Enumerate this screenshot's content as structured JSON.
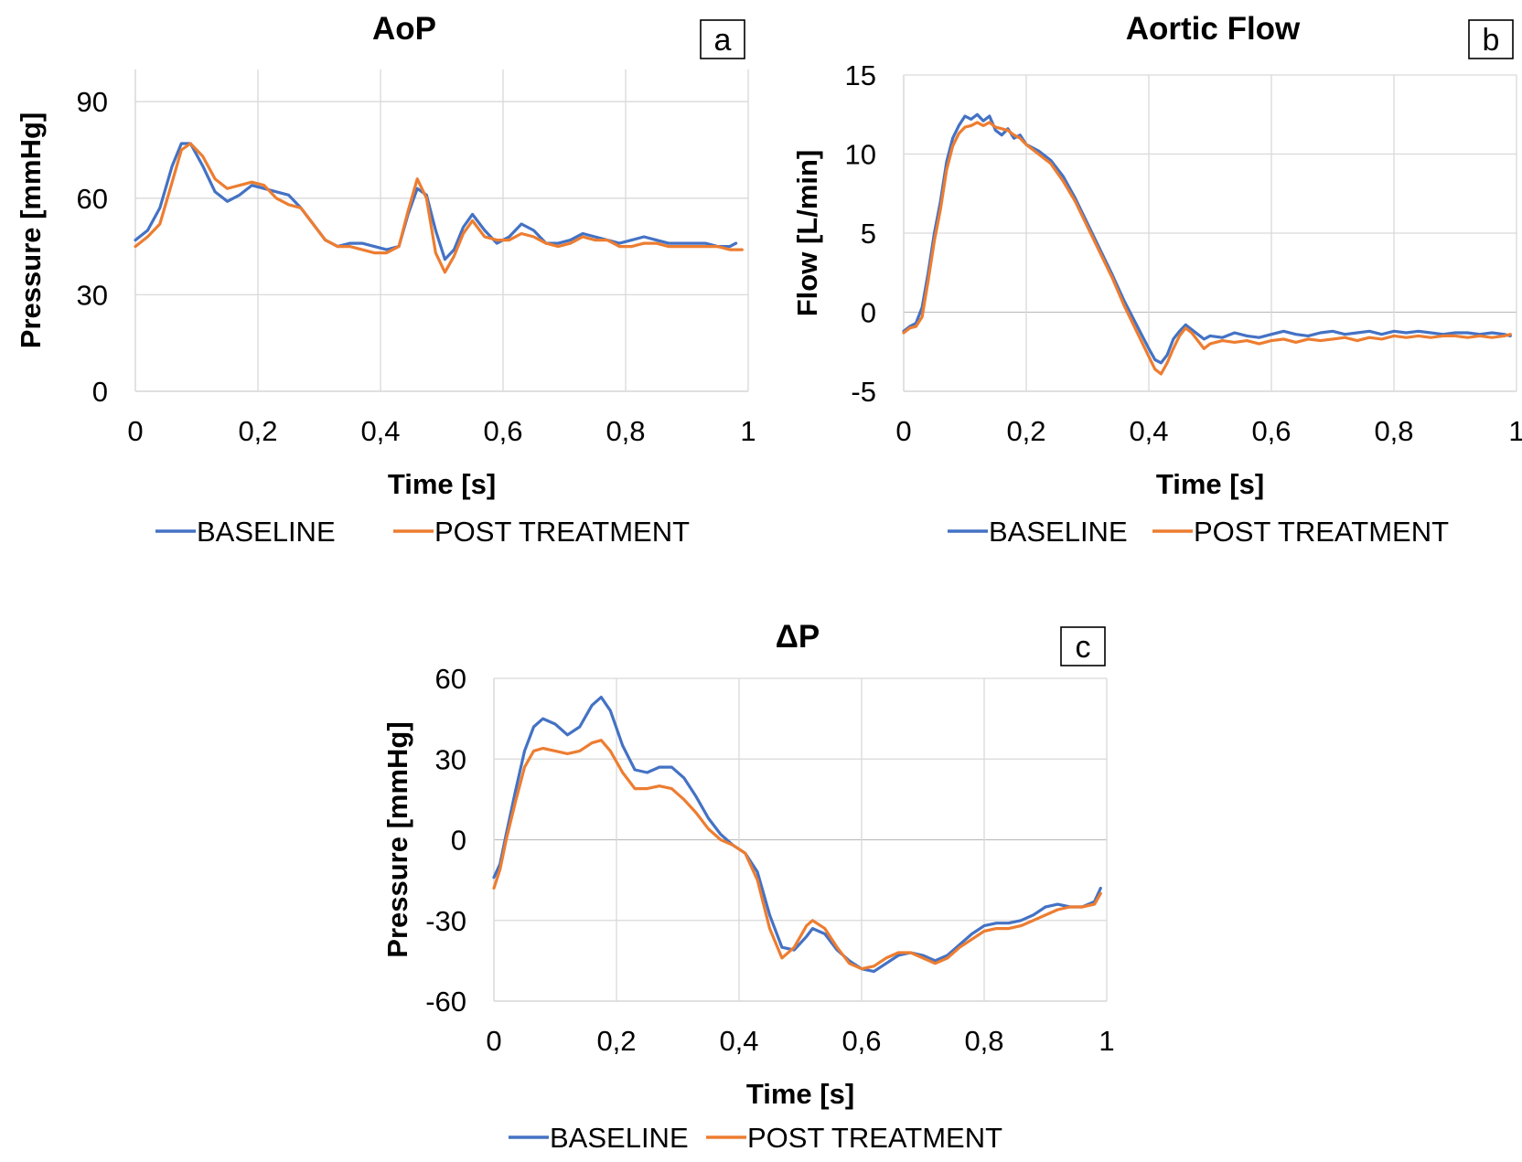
{
  "colors": {
    "baseline": "#4472C4",
    "post": "#ED7D31",
    "grid": "#D9D9D9",
    "text": "#000000",
    "zero": "#BFBFBF"
  },
  "chart_data": [
    {
      "type": "line",
      "panel_label": "a",
      "title": "AoP",
      "xlabel": "Time [s]",
      "ylabel": "Pressure [mmHg]",
      "xlim": [
        0,
        1
      ],
      "ylim": [
        0,
        100
      ],
      "xticks": [
        0,
        0.2,
        0.4,
        0.6,
        0.8,
        1
      ],
      "xtick_labels": [
        "0",
        "0,2",
        "0,4",
        "0,6",
        "0,8",
        "1"
      ],
      "yticks": [
        0,
        30,
        60,
        90
      ],
      "ytick_labels": [
        "0",
        "30",
        "60",
        "90"
      ],
      "grid": true,
      "legend": "bottom",
      "series": [
        {
          "name": "BASELINE",
          "color": "#4472C4",
          "x": [
            0,
            0.02,
            0.04,
            0.06,
            0.075,
            0.09,
            0.11,
            0.13,
            0.15,
            0.17,
            0.19,
            0.21,
            0.23,
            0.25,
            0.27,
            0.29,
            0.31,
            0.33,
            0.35,
            0.37,
            0.39,
            0.41,
            0.43,
            0.445,
            0.46,
            0.475,
            0.49,
            0.505,
            0.52,
            0.535,
            0.55,
            0.57,
            0.59,
            0.61,
            0.63,
            0.65,
            0.67,
            0.69,
            0.71,
            0.73,
            0.75,
            0.77,
            0.79,
            0.81,
            0.83,
            0.85,
            0.87,
            0.89,
            0.91,
            0.93,
            0.95,
            0.97,
            0.98
          ],
          "y": [
            47,
            50,
            57,
            70,
            77,
            77,
            70,
            62,
            59,
            61,
            64,
            63,
            62,
            61,
            57,
            52,
            47,
            45,
            46,
            46,
            45,
            44,
            45,
            55,
            63,
            61,
            50,
            41,
            44,
            51,
            55,
            50,
            46,
            48,
            52,
            50,
            46,
            46,
            47,
            49,
            48,
            47,
            46,
            47,
            48,
            47,
            46,
            46,
            46,
            46,
            45,
            45,
            46
          ]
        },
        {
          "name": "POST TREATMENT",
          "color": "#ED7D31",
          "x": [
            0,
            0.02,
            0.04,
            0.06,
            0.075,
            0.09,
            0.11,
            0.13,
            0.15,
            0.17,
            0.19,
            0.21,
            0.23,
            0.25,
            0.27,
            0.29,
            0.31,
            0.33,
            0.35,
            0.37,
            0.39,
            0.41,
            0.43,
            0.445,
            0.46,
            0.475,
            0.49,
            0.505,
            0.52,
            0.535,
            0.55,
            0.57,
            0.59,
            0.61,
            0.63,
            0.65,
            0.67,
            0.69,
            0.71,
            0.73,
            0.75,
            0.77,
            0.79,
            0.81,
            0.83,
            0.85,
            0.87,
            0.89,
            0.91,
            0.93,
            0.95,
            0.97,
            0.99
          ],
          "y": [
            45,
            48,
            52,
            65,
            75,
            77,
            73,
            66,
            63,
            64,
            65,
            64,
            60,
            58,
            57,
            52,
            47,
            45,
            45,
            44,
            43,
            43,
            45,
            56,
            66,
            60,
            43,
            37,
            42,
            49,
            53,
            48,
            47,
            47,
            49,
            48,
            46,
            45,
            46,
            48,
            47,
            47,
            45,
            45,
            46,
            46,
            45,
            45,
            45,
            45,
            45,
            44,
            44
          ]
        }
      ]
    },
    {
      "type": "line",
      "panel_label": "b",
      "title": "Aortic Flow",
      "xlabel": "Time [s]",
      "ylabel": "Flow [L/min]",
      "xlim": [
        0,
        1
      ],
      "ylim": [
        -5,
        15
      ],
      "xticks": [
        0,
        0.2,
        0.4,
        0.6,
        0.8,
        1
      ],
      "xtick_labels": [
        "0",
        "0,2",
        "0,4",
        "0,6",
        "0,8",
        "1"
      ],
      "yticks": [
        -5,
        0,
        5,
        10,
        15
      ],
      "ytick_labels": [
        "-5",
        "0",
        "5",
        "10",
        "15"
      ],
      "grid": true,
      "legend": "bottom",
      "series": [
        {
          "name": "BASELINE",
          "color": "#4472C4",
          "x": [
            0,
            0.01,
            0.02,
            0.03,
            0.04,
            0.05,
            0.06,
            0.07,
            0.08,
            0.09,
            0.1,
            0.11,
            0.12,
            0.13,
            0.14,
            0.15,
            0.16,
            0.17,
            0.18,
            0.19,
            0.2,
            0.22,
            0.24,
            0.26,
            0.28,
            0.3,
            0.32,
            0.34,
            0.36,
            0.38,
            0.4,
            0.41,
            0.42,
            0.43,
            0.44,
            0.45,
            0.46,
            0.47,
            0.48,
            0.49,
            0.5,
            0.52,
            0.54,
            0.56,
            0.58,
            0.6,
            0.62,
            0.64,
            0.66,
            0.68,
            0.7,
            0.72,
            0.74,
            0.76,
            0.78,
            0.8,
            0.82,
            0.84,
            0.86,
            0.88,
            0.9,
            0.92,
            0.94,
            0.96,
            0.98,
            0.99
          ],
          "y": [
            -1.2,
            -0.9,
            -0.7,
            0.3,
            2.5,
            5,
            7,
            9.5,
            11,
            11.8,
            12.4,
            12.2,
            12.5,
            12.1,
            12.4,
            11.5,
            11.2,
            11.6,
            11,
            11.2,
            10.6,
            10.2,
            9.6,
            8.6,
            7.2,
            5.6,
            4,
            2.4,
            0.7,
            -0.8,
            -2.3,
            -3,
            -3.2,
            -2.7,
            -1.7,
            -1.2,
            -0.8,
            -1.1,
            -1.4,
            -1.7,
            -1.5,
            -1.6,
            -1.3,
            -1.5,
            -1.6,
            -1.4,
            -1.2,
            -1.4,
            -1.5,
            -1.3,
            -1.2,
            -1.4,
            -1.3,
            -1.2,
            -1.4,
            -1.2,
            -1.3,
            -1.2,
            -1.3,
            -1.4,
            -1.3,
            -1.3,
            -1.4,
            -1.3,
            -1.4,
            -1.5
          ]
        },
        {
          "name": "POST TREATMENT",
          "color": "#ED7D31",
          "x": [
            0,
            0.01,
            0.02,
            0.03,
            0.04,
            0.05,
            0.06,
            0.07,
            0.08,
            0.09,
            0.1,
            0.11,
            0.12,
            0.13,
            0.14,
            0.15,
            0.16,
            0.17,
            0.18,
            0.19,
            0.2,
            0.22,
            0.24,
            0.26,
            0.28,
            0.3,
            0.32,
            0.34,
            0.36,
            0.38,
            0.4,
            0.41,
            0.42,
            0.43,
            0.44,
            0.45,
            0.46,
            0.47,
            0.48,
            0.49,
            0.5,
            0.52,
            0.54,
            0.56,
            0.58,
            0.6,
            0.62,
            0.64,
            0.66,
            0.68,
            0.7,
            0.72,
            0.74,
            0.76,
            0.78,
            0.8,
            0.82,
            0.84,
            0.86,
            0.88,
            0.9,
            0.92,
            0.94,
            0.96,
            0.98,
            0.99
          ],
          "y": [
            -1.3,
            -1,
            -0.9,
            -0.3,
            2,
            4.5,
            6.5,
            9,
            10.5,
            11.3,
            11.7,
            11.8,
            12,
            11.8,
            12,
            11.7,
            11.6,
            11.5,
            11.2,
            11,
            10.6,
            10,
            9.4,
            8.3,
            7,
            5.4,
            3.8,
            2.2,
            0.4,
            -1.2,
            -2.8,
            -3.6,
            -3.9,
            -3.2,
            -2.3,
            -1.5,
            -1,
            -1.3,
            -1.8,
            -2.3,
            -2,
            -1.8,
            -1.9,
            -1.8,
            -2,
            -1.8,
            -1.7,
            -1.9,
            -1.7,
            -1.8,
            -1.7,
            -1.6,
            -1.8,
            -1.6,
            -1.7,
            -1.5,
            -1.6,
            -1.5,
            -1.6,
            -1.5,
            -1.5,
            -1.6,
            -1.5,
            -1.6,
            -1.5,
            -1.4
          ]
        }
      ]
    },
    {
      "type": "line",
      "panel_label": "c",
      "title": "ΔP",
      "xlabel": "Time [s]",
      "ylabel": "Pressure [mmHg]",
      "xlim": [
        0,
        1
      ],
      "ylim": [
        -60,
        60
      ],
      "xticks": [
        0,
        0.2,
        0.4,
        0.6,
        0.8,
        1
      ],
      "xtick_labels": [
        "0",
        "0,2",
        "0,4",
        "0,6",
        "0,8",
        "1"
      ],
      "yticks": [
        -60,
        -30,
        0,
        30,
        60
      ],
      "ytick_labels": [
        "-60",
        "-30",
        "0",
        "30",
        "60"
      ],
      "grid": true,
      "legend": "bottom",
      "series": [
        {
          "name": "BASELINE",
          "color": "#4472C4",
          "x": [
            0,
            0.01,
            0.02,
            0.035,
            0.05,
            0.065,
            0.08,
            0.1,
            0.12,
            0.14,
            0.16,
            0.175,
            0.19,
            0.21,
            0.23,
            0.25,
            0.27,
            0.29,
            0.31,
            0.33,
            0.35,
            0.37,
            0.39,
            0.41,
            0.43,
            0.45,
            0.47,
            0.49,
            0.51,
            0.52,
            0.54,
            0.56,
            0.58,
            0.6,
            0.62,
            0.64,
            0.66,
            0.68,
            0.7,
            0.72,
            0.74,
            0.76,
            0.78,
            0.8,
            0.82,
            0.84,
            0.86,
            0.88,
            0.9,
            0.92,
            0.94,
            0.96,
            0.98,
            0.99
          ],
          "y": [
            -14,
            -9,
            2,
            18,
            33,
            42,
            45,
            43,
            39,
            42,
            50,
            53,
            48,
            35,
            26,
            25,
            27,
            27,
            23,
            16,
            8,
            2,
            -2,
            -5,
            -12,
            -28,
            -40,
            -41,
            -36,
            -33,
            -35,
            -41,
            -45,
            -48,
            -49,
            -46,
            -43,
            -42,
            -43,
            -45,
            -43,
            -39,
            -35,
            -32,
            -31,
            -31,
            -30,
            -28,
            -25,
            -24,
            -25,
            -25,
            -23,
            -18
          ]
        },
        {
          "name": "POST TREATMENT",
          "color": "#ED7D31",
          "x": [
            0,
            0.01,
            0.02,
            0.035,
            0.05,
            0.065,
            0.08,
            0.1,
            0.12,
            0.14,
            0.16,
            0.175,
            0.19,
            0.21,
            0.23,
            0.25,
            0.27,
            0.29,
            0.31,
            0.33,
            0.35,
            0.37,
            0.39,
            0.41,
            0.43,
            0.45,
            0.47,
            0.49,
            0.51,
            0.52,
            0.54,
            0.56,
            0.58,
            0.6,
            0.62,
            0.64,
            0.66,
            0.68,
            0.7,
            0.72,
            0.74,
            0.76,
            0.78,
            0.8,
            0.82,
            0.84,
            0.86,
            0.88,
            0.9,
            0.92,
            0.94,
            0.96,
            0.98,
            0.99
          ],
          "y": [
            -18,
            -11,
            0,
            14,
            27,
            33,
            34,
            33,
            32,
            33,
            36,
            37,
            33,
            25,
            19,
            19,
            20,
            19,
            15,
            10,
            4,
            0,
            -2,
            -5,
            -15,
            -33,
            -44,
            -40,
            -32,
            -30,
            -33,
            -40,
            -46,
            -48,
            -47,
            -44,
            -42,
            -42,
            -44,
            -46,
            -44,
            -40,
            -37,
            -34,
            -33,
            -33,
            -32,
            -30,
            -28,
            -26,
            -25,
            -25,
            -24,
            -20
          ]
        }
      ]
    }
  ]
}
